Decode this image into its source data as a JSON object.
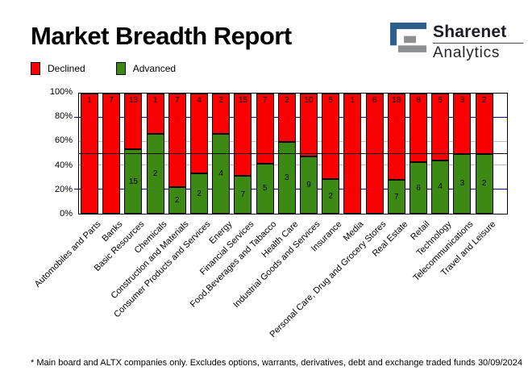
{
  "title": "Market Breadth Report",
  "logo": {
    "name": "Sharenet",
    "sub": "Analytics"
  },
  "colors": {
    "declined": "#fb0000",
    "advanced": "#3c8a14",
    "grid_gray": "#bcbcbc",
    "grid_navy": "#000080",
    "half_line": "#000000",
    "logo_blue": "#2d5f8c",
    "logo_gray": "#8e8f91"
  },
  "legend": [
    {
      "label": "Declined",
      "color": "#fb0000"
    },
    {
      "label": "Advanced",
      "color": "#3c8a14"
    }
  ],
  "chart_data": {
    "type": "bar",
    "stacked": true,
    "stack_mode": "percent",
    "title": "Market Breadth Report",
    "xlabel": "",
    "ylabel": "",
    "ylim": [
      0,
      100
    ],
    "yticks": [
      "0%",
      "20%",
      "40%",
      "60%",
      "80%",
      "100%"
    ],
    "legend_position": "top-left",
    "categories": [
      "Automobiles and Parts",
      "Banks",
      "Basic Resources",
      "Chemicals",
      "Construction and Materials",
      "Consumer Products and Services",
      "Energy",
      "Financial Services",
      "Food,Beverages and Tabacco",
      "Health Care",
      "Industrial Goods and Services",
      "Insurance",
      "Media",
      "Personal Care, Drug and Grocery Stores",
      "Real Estate",
      "Retail",
      "Technology",
      "Telecommunications",
      "Travel and Leisure"
    ],
    "series": [
      {
        "name": "Declined",
        "color": "#fb0000",
        "values": [
          1,
          7,
          13,
          1,
          7,
          4,
          2,
          15,
          7,
          2,
          10,
          5,
          1,
          6,
          18,
          8,
          5,
          3,
          2
        ]
      },
      {
        "name": "Advanced",
        "color": "#3c8a14",
        "values": [
          0,
          0,
          15,
          2,
          2,
          2,
          4,
          7,
          5,
          3,
          9,
          2,
          0,
          0,
          7,
          6,
          4,
          3,
          2
        ]
      }
    ],
    "gridlines": [
      {
        "percent": 20,
        "color": "#000080",
        "tick_outside": true
      },
      {
        "percent": 40,
        "color": "#bcbcbc"
      },
      {
        "percent": 50,
        "color": "#000000",
        "over_bars": true
      },
      {
        "percent": 60,
        "color": "#bcbcbc"
      },
      {
        "percent": 80,
        "color": "#000080",
        "tick_outside": true
      }
    ]
  },
  "footnote": "* Main board and ALTX companies only. Excludes options, warrants, derivatives, debt and exchange traded funds",
  "date": "30/09/2024"
}
